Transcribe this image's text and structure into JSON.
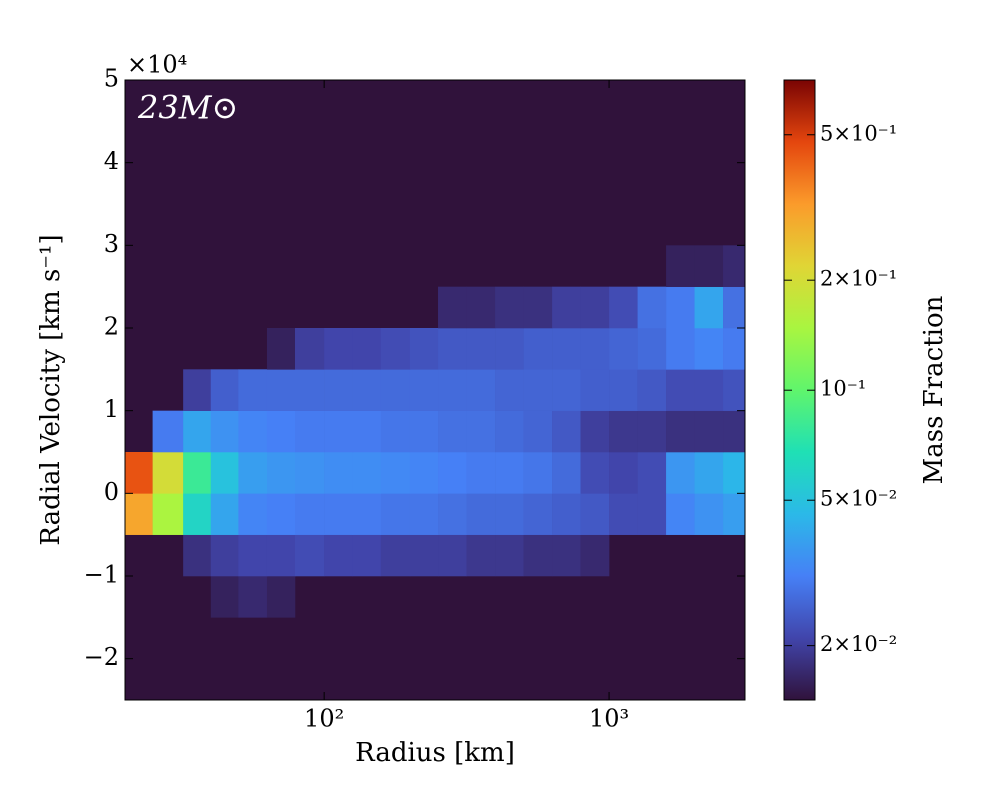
{
  "chart_data": {
    "type": "heatmap",
    "annotation": "23M⊙",
    "x_label": "Radius [km]",
    "y_label": "Radial Velocity [km s⁻¹]",
    "xscale": "log",
    "xlim": [
      20,
      3000
    ],
    "xticks": [
      {
        "value": 100,
        "label": "10²"
      },
      {
        "value": 1000,
        "label": "10³"
      }
    ],
    "ylim": [
      -25000,
      50000
    ],
    "yticks": [
      {
        "value": -20000,
        "label": "−2"
      },
      {
        "value": -10000,
        "label": "−1"
      },
      {
        "value": 0,
        "label": "0"
      },
      {
        "value": 10000,
        "label": "1"
      },
      {
        "value": 20000,
        "label": "2"
      },
      {
        "value": 30000,
        "label": "3"
      },
      {
        "value": 40000,
        "label": "4"
      },
      {
        "value": 50000,
        "label": "5"
      }
    ],
    "y_offset_label": "×10⁴",
    "x_bins": [
      20,
      25,
      32,
      40,
      50,
      63,
      79,
      100,
      126,
      158,
      200,
      251,
      316,
      398,
      501,
      631,
      794,
      1000,
      1259,
      1585,
      1995,
      2512,
      3000
    ],
    "y_bins": [
      -15000,
      -10000,
      -5000,
      0,
      5000,
      10000,
      15000,
      20000,
      25000,
      30000
    ],
    "z": [
      [
        null,
        null,
        null,
        0.016,
        0.017,
        0.016,
        null,
        null,
        null,
        null,
        null,
        null,
        null,
        null,
        null,
        null,
        null,
        null,
        null,
        null,
        null,
        null
      ],
      [
        null,
        null,
        0.018,
        0.02,
        0.021,
        0.021,
        0.022,
        0.021,
        0.021,
        0.02,
        0.02,
        0.02,
        0.019,
        0.019,
        0.018,
        0.018,
        0.017,
        null,
        null,
        null,
        null,
        null
      ],
      [
        0.3,
        0.15,
        0.06,
        0.04,
        0.032,
        0.031,
        0.03,
        0.03,
        0.03,
        0.029,
        0.029,
        0.028,
        0.027,
        0.027,
        0.026,
        0.025,
        0.024,
        0.022,
        0.022,
        0.032,
        0.035,
        0.038
      ],
      [
        0.45,
        0.2,
        0.08,
        0.05,
        0.038,
        0.036,
        0.035,
        0.034,
        0.034,
        0.033,
        0.032,
        0.031,
        0.03,
        0.03,
        0.029,
        0.027,
        0.022,
        0.021,
        0.022,
        0.036,
        0.04,
        0.045
      ],
      [
        null,
        0.03,
        0.04,
        0.035,
        0.032,
        0.031,
        0.03,
        0.03,
        0.03,
        0.029,
        0.029,
        0.028,
        0.028,
        0.027,
        0.026,
        0.024,
        0.02,
        0.019,
        0.019,
        0.018,
        0.018,
        0.018
      ],
      [
        null,
        null,
        0.02,
        0.025,
        0.027,
        0.027,
        0.027,
        0.027,
        0.027,
        0.027,
        0.027,
        0.027,
        0.027,
        0.026,
        0.026,
        0.026,
        0.025,
        0.025,
        0.024,
        0.022,
        0.022,
        0.023
      ],
      [
        null,
        null,
        null,
        null,
        null,
        0.016,
        0.02,
        0.021,
        0.021,
        0.022,
        0.023,
        0.024,
        0.024,
        0.024,
        0.025,
        0.025,
        0.025,
        0.026,
        0.027,
        0.03,
        0.032,
        0.03
      ],
      [
        null,
        null,
        null,
        null,
        null,
        null,
        null,
        null,
        null,
        null,
        null,
        0.017,
        0.017,
        0.018,
        0.018,
        0.02,
        0.02,
        0.022,
        0.028,
        0.03,
        0.04,
        0.028
      ],
      [
        null,
        null,
        null,
        null,
        null,
        null,
        null,
        null,
        null,
        null,
        null,
        null,
        null,
        null,
        null,
        null,
        null,
        null,
        null,
        0.016,
        0.016,
        0.017
      ]
    ],
    "colorbar": {
      "label": "Mass Fraction",
      "scale": "log",
      "lim": [
        0.0142,
        0.706
      ],
      "ticks": [
        {
          "value": 0.02,
          "label": "2×10⁻²"
        },
        {
          "value": 0.05,
          "label": "5×10⁻²"
        },
        {
          "value": 0.1,
          "label": "10⁻¹"
        },
        {
          "value": 0.2,
          "label": "2×10⁻¹"
        },
        {
          "value": 0.5,
          "label": "5×10⁻¹"
        }
      ],
      "colormap": [
        "#30123b",
        "#4145ab",
        "#4680f6",
        "#2bb9e8",
        "#1fe0b5",
        "#60f56c",
        "#a9f540",
        "#e0d535",
        "#fb9b2b",
        "#e4460e",
        "#7a0403"
      ]
    }
  }
}
